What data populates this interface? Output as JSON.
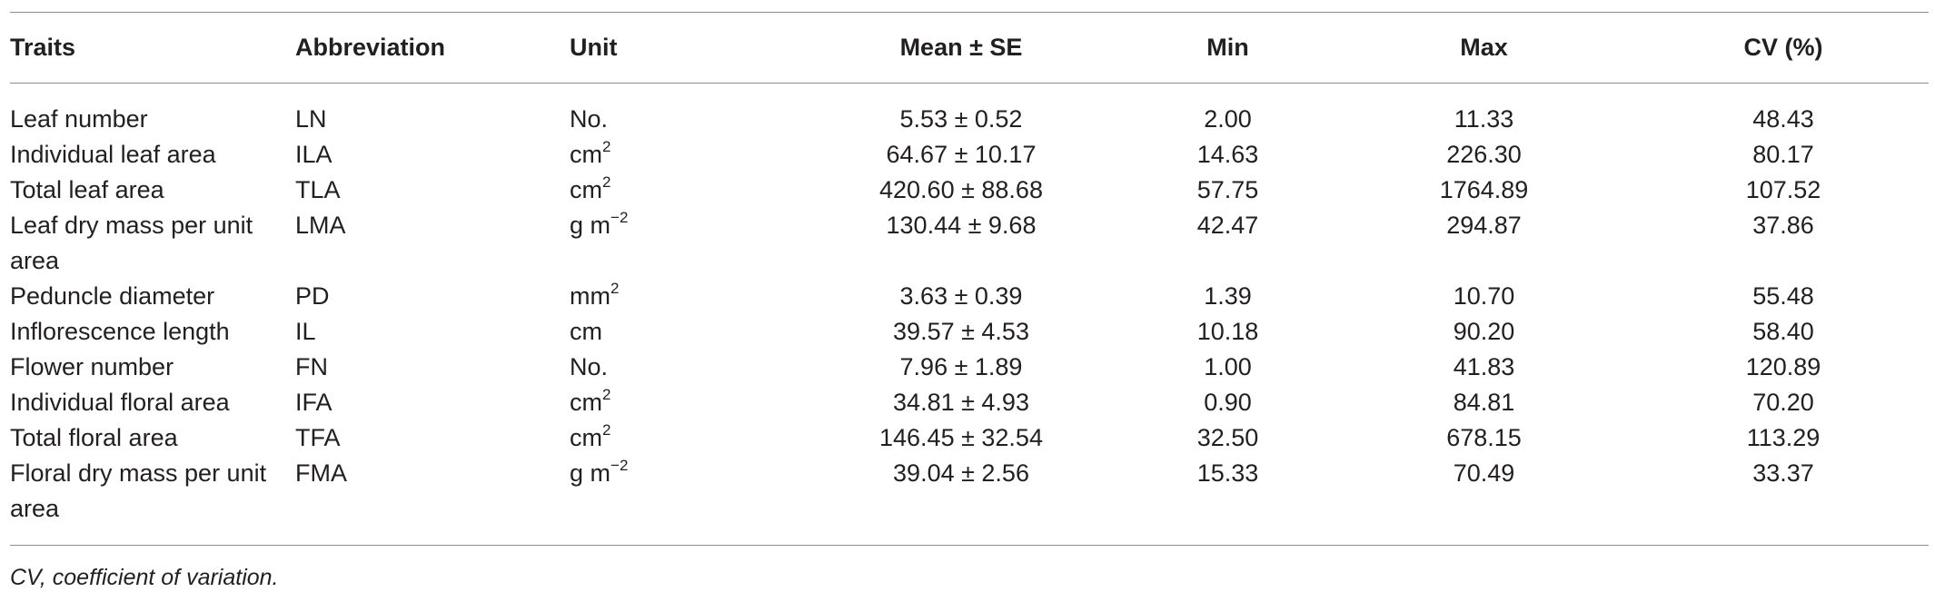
{
  "table": {
    "headers": {
      "traits": "Traits",
      "abbreviation": "Abbreviation",
      "unit": "Unit",
      "mean_se": "Mean ± SE",
      "min": "Min",
      "max": "Max",
      "cv": "CV (%)"
    },
    "rows": [
      {
        "trait": "Leaf number",
        "abbr": "LN",
        "unit_base": "No.",
        "unit_sup": "",
        "mean_se": "5.53 ± 0.52",
        "min": "2.00",
        "max": "11.33",
        "cv": "48.43"
      },
      {
        "trait": "Individual leaf area",
        "abbr": "ILA",
        "unit_base": "cm",
        "unit_sup": "2",
        "mean_se": "64.67 ± 10.17",
        "min": "14.63",
        "max": "226.30",
        "cv": "80.17"
      },
      {
        "trait": "Total leaf area",
        "abbr": "TLA",
        "unit_base": "cm",
        "unit_sup": "2",
        "mean_se": "420.60 ± 88.68",
        "min": "57.75",
        "max": "1764.89",
        "cv": "107.52"
      },
      {
        "trait": "Leaf dry mass per unit area",
        "abbr": "LMA",
        "unit_base": "g m",
        "unit_sup": "−2",
        "mean_se": "130.44 ± 9.68",
        "min": "42.47",
        "max": "294.87",
        "cv": "37.86"
      },
      {
        "trait": "Peduncle diameter",
        "abbr": "PD",
        "unit_base": "mm",
        "unit_sup": "2",
        "mean_se": "3.63 ± 0.39",
        "min": "1.39",
        "max": "10.70",
        "cv": "55.48"
      },
      {
        "trait": "Inflorescence length",
        "abbr": "IL",
        "unit_base": "cm",
        "unit_sup": "",
        "mean_se": "39.57 ± 4.53",
        "min": "10.18",
        "max": "90.20",
        "cv": "58.40"
      },
      {
        "trait": "Flower number",
        "abbr": "FN",
        "unit_base": "No.",
        "unit_sup": "",
        "mean_se": "7.96 ± 1.89",
        "min": "1.00",
        "max": "41.83",
        "cv": "120.89"
      },
      {
        "trait": "Individual floral area",
        "abbr": "IFA",
        "unit_base": "cm",
        "unit_sup": "2",
        "mean_se": "34.81 ± 4.93",
        "min": "0.90",
        "max": "84.81",
        "cv": "70.20"
      },
      {
        "trait": "Total floral area",
        "abbr": "TFA",
        "unit_base": "cm",
        "unit_sup": "2",
        "mean_se": "146.45 ± 32.54",
        "min": "32.50",
        "max": "678.15",
        "cv": "113.29"
      },
      {
        "trait": "Floral dry mass per unit area",
        "abbr": "FMA",
        "unit_base": "g m",
        "unit_sup": "−2",
        "mean_se": "39.04 ± 2.56",
        "min": "15.33",
        "max": "70.49",
        "cv": "33.37"
      }
    ]
  },
  "footnote": "CV, coefficient of variation."
}
